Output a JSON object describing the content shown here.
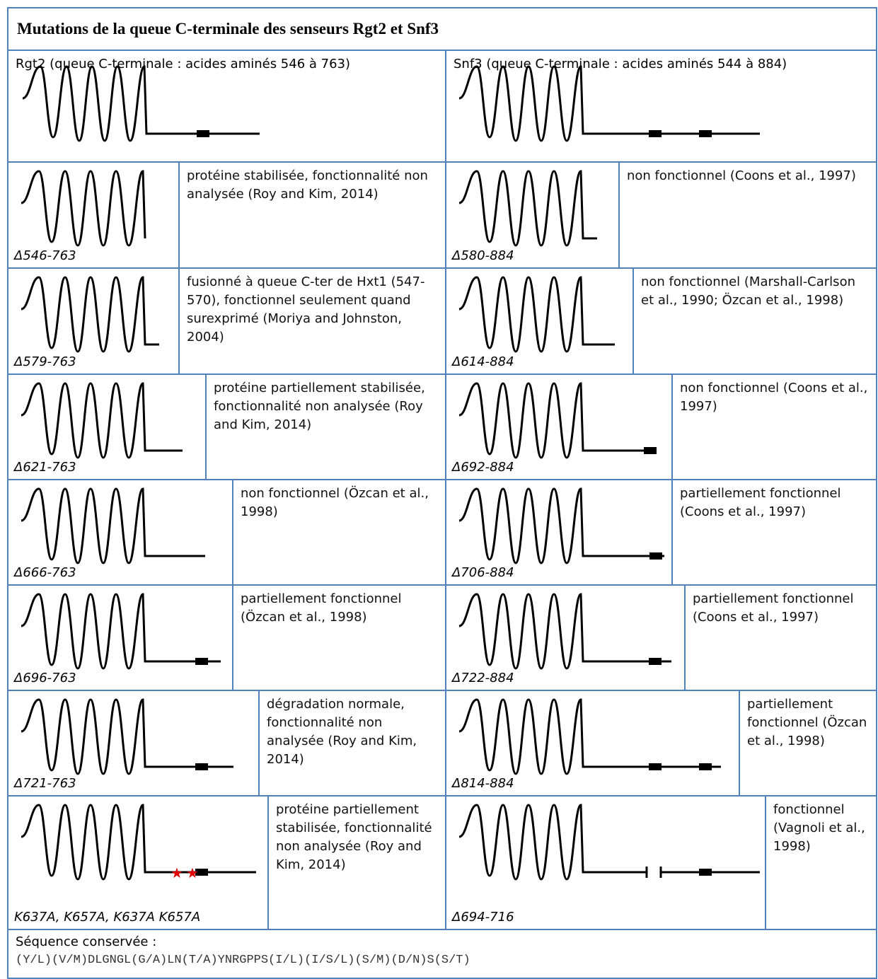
{
  "title": "Mutations de la queue C-terminale des senseurs Rgt2 et Snf3",
  "header": {
    "left": "Rgt2 (queue C-terminale : acides aminés 546 à 763)",
    "right": "Snf3 (queue C-terminale : acides aminés 544 à 884)"
  },
  "rows": [
    {
      "left": {
        "label": "Δ546-763",
        "description": "protéine stabilisée, fonctionnalité non analysée (Roy and Kim, 2014)"
      },
      "right": {
        "label": "Δ580-884",
        "description": "non fonctionnel (Coons et al., 1997)"
      }
    },
    {
      "left": {
        "label": "Δ579-763",
        "description": "fusionné à queue C-ter de Hxt1 (547-570), fonctionnel seulement quand surexprimé (Moriya and Johnston, 2004)"
      },
      "right": {
        "label": "Δ614-884",
        "description": "non fonctionnel (Marshall-Carlson et al., 1990; Özcan et al., 1998)"
      }
    },
    {
      "left": {
        "label": "Δ621-763",
        "description": "protéine partiellement stabilisée, fonctionnalité non analysée (Roy and Kim, 2014)"
      },
      "right": {
        "label": "Δ692-884",
        "description": "non fonctionnel (Coons et al., 1997)"
      }
    },
    {
      "left": {
        "label": "Δ666-763",
        "description": "non fonctionnel (Özcan et al., 1998)"
      },
      "right": {
        "label": "Δ706-884",
        "description": "partiellement fonctionnel (Coons et al., 1997)"
      }
    },
    {
      "left": {
        "label": "Δ696-763",
        "description": "partiellement fonctionnel (Özcan et al., 1998)"
      },
      "right": {
        "label": "Δ722-884",
        "description": "partiellement fonctionnel (Coons et al., 1997)"
      }
    },
    {
      "left": {
        "label": "Δ721-763",
        "description": "dégradation normale, fonctionnalité non analysée (Roy and Kim, 2014)"
      },
      "right": {
        "label": "Δ814-884",
        "description": "partiellement fonctionnel (Özcan et al., 1998)"
      }
    },
    {
      "left": {
        "label": "K637A, K657A, K637A K657A",
        "description": "protéine partiellement stabilisée, fonctionnalité non analysée (Roy and Kim, 2014)"
      },
      "right": {
        "label": "Δ694-716",
        "description": "fonctionnel (Vagnoli et al., 1998)"
      }
    }
  ],
  "footer": {
    "label": "Séquence conservée :",
    "sequence": "(Y/L)(V/M)DLGNGL(G/A)LN(T/A)YNRGPPS(I/L)(I/S/L)(S/M)(D/N)S(S/T)"
  }
}
